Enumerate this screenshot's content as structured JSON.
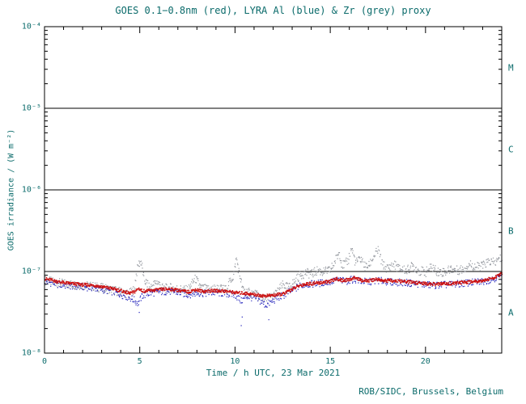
{
  "chart_data": {
    "type": "scatter",
    "title": "GOES 0.1−0.8nm (red), LYRA Al (blue) & Zr (grey) proxy",
    "xlabel": "Time / h UTC, 23 Mar 2021",
    "ylabel": "GOES irradiance / (W m⁻²)",
    "footer": "ROB/SIDC, Brussels, Belgium",
    "x_range": [
      0,
      24
    ],
    "y_range_exp": [
      -8,
      -4
    ],
    "y_scale": "log",
    "grid": "horizontal-decades",
    "legend_position": "none",
    "x_major_ticks": [
      0,
      5,
      10,
      15,
      20
    ],
    "x_minor_step": 1,
    "x_tick_labels": [
      "0",
      "5",
      "10",
      "15",
      "20"
    ],
    "y_tick_labels": [
      "10⁻⁴",
      "10⁻⁵",
      "10⁻⁶",
      "10⁻⁷",
      "10⁻⁸"
    ],
    "y_decade_exponents": [
      -4,
      -5,
      -6,
      -7,
      -8
    ],
    "gridline_exponents": [
      -5,
      -6,
      -7
    ],
    "flare_classes": [
      {
        "label": "M",
        "exp_mid": -4.5
      },
      {
        "label": "C",
        "exp_mid": -5.5
      },
      {
        "label": "B",
        "exp_mid": -6.5
      },
      {
        "label": "A",
        "exp_mid": -7.5
      }
    ],
    "colors": {
      "text": "#0b6b6b",
      "axis": "#000000",
      "red": "#cc1111",
      "blue": "#2222bb",
      "grey": "#94989f"
    },
    "y_unit_factor": 1e-08,
    "series": [
      {
        "id": "zr",
        "name": "LYRA Zr proxy",
        "color_key": "grey",
        "noise": 0.13,
        "step": 0.025,
        "dot": 1.2,
        "points": [
          [
            0,
            7.9
          ],
          [
            0.5,
            7.5
          ],
          [
            1,
            7.2
          ],
          [
            1.5,
            7.0
          ],
          [
            2,
            6.9
          ],
          [
            2.5,
            6.7
          ],
          [
            3,
            6.4
          ],
          [
            3.5,
            6.1
          ],
          [
            4,
            5.7
          ],
          [
            4.4,
            5.4
          ],
          [
            4.7,
            6.1
          ],
          [
            4.9,
            12.5
          ],
          [
            5.05,
            13.5
          ],
          [
            5.2,
            8.0
          ],
          [
            5.5,
            6.4
          ],
          [
            5.9,
            7.6
          ],
          [
            6.2,
            6.3
          ],
          [
            6.6,
            6.4
          ],
          [
            7,
            6.2
          ],
          [
            7.5,
            6.0
          ],
          [
            7.9,
            8.3
          ],
          [
            8.2,
            6.3
          ],
          [
            8.6,
            6.2
          ],
          [
            9,
            6.3
          ],
          [
            9.5,
            6.1
          ],
          [
            9.9,
            9.0
          ],
          [
            10.05,
            14.5
          ],
          [
            10.2,
            9.5
          ],
          [
            10.4,
            6.0
          ],
          [
            10.7,
            5.6
          ],
          [
            11,
            5.4
          ],
          [
            11.3,
            5.0
          ],
          [
            11.6,
            4.6
          ],
          [
            11.9,
            5.0
          ],
          [
            12.2,
            5.6
          ],
          [
            12.5,
            7.0
          ],
          [
            12.8,
            6.4
          ],
          [
            13.1,
            7.6
          ],
          [
            13.4,
            9.2
          ],
          [
            13.7,
            9.8
          ],
          [
            14,
            9.5
          ],
          [
            14.3,
            10.5
          ],
          [
            14.6,
            10.0
          ],
          [
            15,
            10.6
          ],
          [
            15.2,
            13.0
          ],
          [
            15.45,
            17.5
          ],
          [
            15.6,
            12.0
          ],
          [
            15.9,
            13.5
          ],
          [
            16.1,
            19.5
          ],
          [
            16.3,
            13.0
          ],
          [
            16.6,
            14.5
          ],
          [
            16.8,
            11.5
          ],
          [
            17,
            12.0
          ],
          [
            17.3,
            16.0
          ],
          [
            17.5,
            18.5
          ],
          [
            17.7,
            12.5
          ],
          [
            18,
            11.0
          ],
          [
            18.3,
            12.5
          ],
          [
            18.6,
            11.0
          ],
          [
            19,
            10.5
          ],
          [
            19.3,
            12.0
          ],
          [
            19.6,
            10.5
          ],
          [
            20,
            10.0
          ],
          [
            20.3,
            11.5
          ],
          [
            20.6,
            10.2
          ],
          [
            21,
            10.0
          ],
          [
            21.3,
            11.0
          ],
          [
            21.6,
            10.5
          ],
          [
            22,
            11.0
          ],
          [
            22.3,
            12.5
          ],
          [
            22.6,
            11.5
          ],
          [
            23,
            12.0
          ],
          [
            23.3,
            13.5
          ],
          [
            23.6,
            13.0
          ],
          [
            24,
            15.0
          ]
        ],
        "outliers": []
      },
      {
        "id": "al",
        "name": "LYRA Al proxy",
        "color_key": "blue",
        "noise": 0.1,
        "step": 0.03,
        "dot": 1.2,
        "points": [
          [
            0,
            7.7
          ],
          [
            0.4,
            7.3
          ],
          [
            0.8,
            7.0
          ],
          [
            1.2,
            6.8
          ],
          [
            1.6,
            6.7
          ],
          [
            2,
            6.6
          ],
          [
            2.5,
            6.4
          ],
          [
            3,
            6.1
          ],
          [
            3.5,
            5.8
          ],
          [
            4,
            5.3
          ],
          [
            4.4,
            4.9
          ],
          [
            4.7,
            4.5
          ],
          [
            4.9,
            4.1
          ],
          [
            5.1,
            5.1
          ],
          [
            5.5,
            5.5
          ],
          [
            6,
            5.7
          ],
          [
            6.5,
            5.8
          ],
          [
            7,
            5.6
          ],
          [
            7.5,
            5.3
          ],
          [
            8,
            5.5
          ],
          [
            8.5,
            5.5
          ],
          [
            9,
            5.6
          ],
          [
            9.5,
            5.4
          ],
          [
            10,
            5.2
          ],
          [
            10.3,
            4.4
          ],
          [
            10.6,
            5.0
          ],
          [
            11,
            4.8
          ],
          [
            11.3,
            4.4
          ],
          [
            11.6,
            3.9
          ],
          [
            11.9,
            4.3
          ],
          [
            12.2,
            4.8
          ],
          [
            12.6,
            5.3
          ],
          [
            13,
            6.0
          ],
          [
            13.4,
            6.8
          ],
          [
            13.8,
            7.1
          ],
          [
            14.2,
            7.2
          ],
          [
            14.6,
            7.4
          ],
          [
            15,
            7.6
          ],
          [
            15.4,
            8.0
          ],
          [
            15.8,
            7.7
          ],
          [
            16.2,
            8.2
          ],
          [
            16.6,
            7.7
          ],
          [
            17,
            7.6
          ],
          [
            17.5,
            7.9
          ],
          [
            18,
            7.6
          ],
          [
            18.5,
            7.5
          ],
          [
            19,
            7.4
          ],
          [
            19.5,
            7.2
          ],
          [
            20,
            7.0
          ],
          [
            20.5,
            6.9
          ],
          [
            21,
            7.0
          ],
          [
            21.5,
            7.1
          ],
          [
            22,
            7.3
          ],
          [
            22.5,
            7.5
          ],
          [
            23,
            7.7
          ],
          [
            23.5,
            8.2
          ],
          [
            24,
            9.0
          ]
        ],
        "outliers": [
          [
            10.3,
            2.2
          ],
          [
            10.35,
            2.8
          ],
          [
            11.75,
            2.6
          ],
          [
            4.95,
            3.2
          ]
        ]
      },
      {
        "id": "goes",
        "name": "GOES 0.1−0.8nm",
        "color_key": "red",
        "noise": 0.045,
        "step": 0.02,
        "dot": 1.5,
        "points": [
          [
            0,
            8.3
          ],
          [
            0.3,
            8.0
          ],
          [
            0.6,
            7.7
          ],
          [
            1,
            7.4
          ],
          [
            1.5,
            7.2
          ],
          [
            2,
            7.0
          ],
          [
            2.5,
            6.9
          ],
          [
            3,
            6.6
          ],
          [
            3.5,
            6.3
          ],
          [
            4,
            5.9
          ],
          [
            4.4,
            5.5
          ],
          [
            4.7,
            5.7
          ],
          [
            4.9,
            6.3
          ],
          [
            5.1,
            5.9
          ],
          [
            5.5,
            5.9
          ],
          [
            6,
            6.1
          ],
          [
            6.5,
            6.2
          ],
          [
            7,
            6.0
          ],
          [
            7.5,
            5.7
          ],
          [
            7.9,
            6.1
          ],
          [
            8.3,
            5.8
          ],
          [
            8.7,
            5.9
          ],
          [
            9.2,
            5.9
          ],
          [
            9.6,
            5.8
          ],
          [
            10,
            5.6
          ],
          [
            10.5,
            5.5
          ],
          [
            11,
            5.3
          ],
          [
            11.5,
            5.1
          ],
          [
            12,
            5.2
          ],
          [
            12.5,
            5.4
          ],
          [
            13,
            6.2
          ],
          [
            13.4,
            6.9
          ],
          [
            13.8,
            7.2
          ],
          [
            14.2,
            7.3
          ],
          [
            14.6,
            7.5
          ],
          [
            15,
            7.7
          ],
          [
            15.3,
            8.3
          ],
          [
            15.6,
            7.9
          ],
          [
            16,
            8.1
          ],
          [
            16.3,
            8.6
          ],
          [
            16.6,
            7.9
          ],
          [
            17,
            7.8
          ],
          [
            17.4,
            8.2
          ],
          [
            17.8,
            7.8
          ],
          [
            18.2,
            7.9
          ],
          [
            18.6,
            7.7
          ],
          [
            19,
            7.6
          ],
          [
            19.5,
            7.4
          ],
          [
            20,
            7.2
          ],
          [
            20.5,
            7.1
          ],
          [
            21,
            7.2
          ],
          [
            21.5,
            7.3
          ],
          [
            22,
            7.5
          ],
          [
            22.5,
            7.7
          ],
          [
            23,
            7.9
          ],
          [
            23.4,
            8.3
          ],
          [
            23.7,
            8.8
          ],
          [
            24,
            9.6
          ]
        ],
        "outliers": []
      }
    ]
  }
}
